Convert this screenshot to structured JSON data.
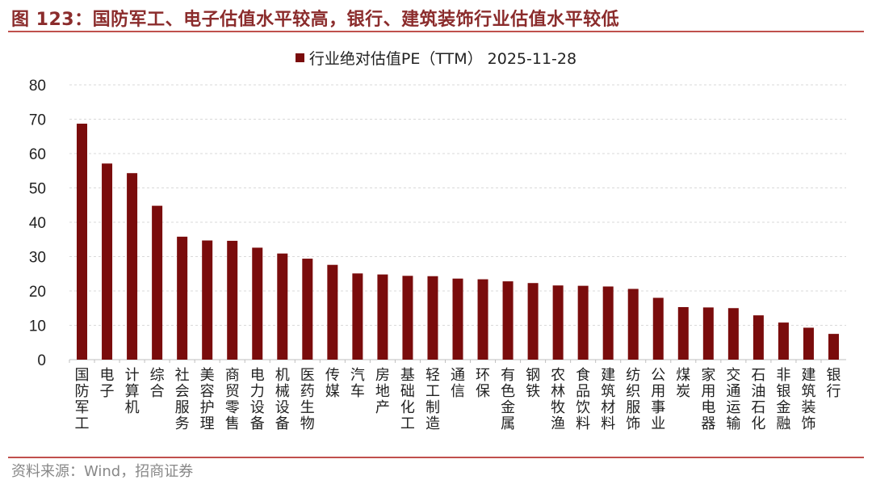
{
  "figure_title": "图 123：国防军工、电子估值水平较高，银行、建筑装饰行业估值水平较低",
  "source_note": "资料来源：Wind，招商证券",
  "colors": {
    "bar": "#7a0c0c",
    "title": "#8b2c2c",
    "rule": "#c0504d",
    "grid": "#d9d9d9"
  },
  "chart_data": {
    "type": "bar",
    "legend": "行业绝对估值PE（TTM） 2025-11-28",
    "legend_placement": "top-center",
    "grid": true,
    "ylim": [
      0,
      80
    ],
    "yticks": [
      0,
      10,
      20,
      30,
      40,
      50,
      60,
      70,
      80
    ],
    "categories": [
      "国防军工",
      "电子",
      "计算机",
      "综合",
      "社会服务",
      "美容护理",
      "商贸零售",
      "电力设备",
      "机械设备",
      "医药生物",
      "传媒",
      "汽车",
      "房地产",
      "基础化工",
      "轻工制造",
      "通信",
      "环保",
      "有色金属",
      "钢铁",
      "农林牧渔",
      "食品饮料",
      "建筑材料",
      "纺织服饰",
      "公用事业",
      "煤炭",
      "家用电器",
      "交通运输",
      "石油石化",
      "非银金融",
      "建筑装饰",
      "银行"
    ],
    "series": [
      {
        "name": "行业绝对估值PE（TTM） 2025-11-28",
        "values": [
          68.7,
          57.1,
          54.3,
          44.8,
          35.8,
          34.7,
          34.6,
          32.6,
          30.9,
          29.4,
          27.6,
          25.1,
          24.8,
          24.4,
          24.3,
          23.6,
          23.4,
          22.8,
          22.3,
          21.6,
          21.5,
          21.3,
          20.6,
          18.0,
          15.3,
          15.2,
          15.0,
          12.9,
          10.8,
          9.3,
          7.5
        ]
      }
    ]
  }
}
